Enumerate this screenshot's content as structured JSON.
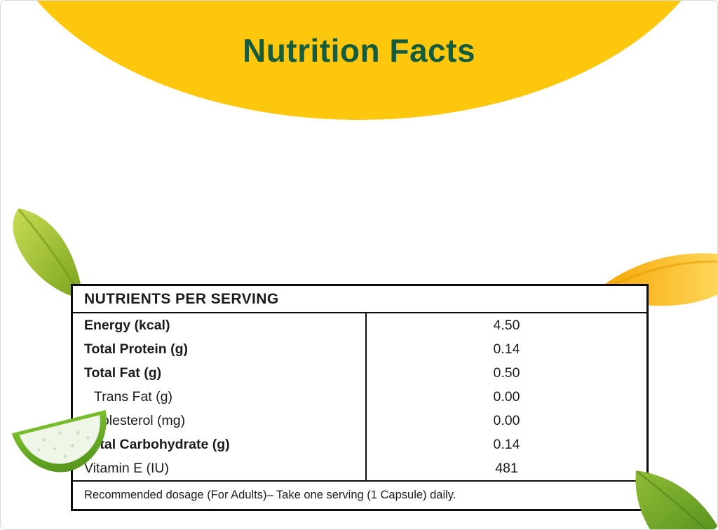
{
  "header": {
    "title": "Nutrition Facts"
  },
  "table": {
    "header": "NUTRIENTS PER SERVING",
    "rows": [
      {
        "label": "Energy (kcal)",
        "value": "4.50",
        "bold": true,
        "indent": false
      },
      {
        "label": "Total Protein (g)",
        "value": "0.14",
        "bold": true,
        "indent": false
      },
      {
        "label": "Total Fat (g)",
        "value": "0.50",
        "bold": true,
        "indent": false
      },
      {
        "label": "Trans Fat (g)",
        "value": "0.00",
        "bold": false,
        "indent": true
      },
      {
        "label": "Cholesterol (mg)",
        "value": "0.00",
        "bold": false,
        "indent": false
      },
      {
        "label": "Total Carbohydrate (g)",
        "value": "0.14",
        "bold": true,
        "indent": false
      },
      {
        "label": "Vitamin E (IU)",
        "value": "481",
        "bold": false,
        "indent": false
      }
    ],
    "footnote": "Recommended dosage (For Adults)– Take one serving (1 Capsule) daily."
  },
  "decorations": {
    "top_left": "green-leaf",
    "right": "yellow-petal",
    "bottom_left": "aloe-slice",
    "bottom_right": "green-leaf"
  },
  "colors": {
    "banner_yellow": "#fdc70d",
    "title_green": "#155b3e",
    "table_border": "#0d0d0d",
    "leaf_light": "#c2d94e",
    "leaf_dark": "#6f9c1e",
    "petal_orange": "#f5a300",
    "petal_yellow": "#ffd95e",
    "aloe_rind": "#63a822",
    "aloe_gel": "#eef6e7"
  }
}
